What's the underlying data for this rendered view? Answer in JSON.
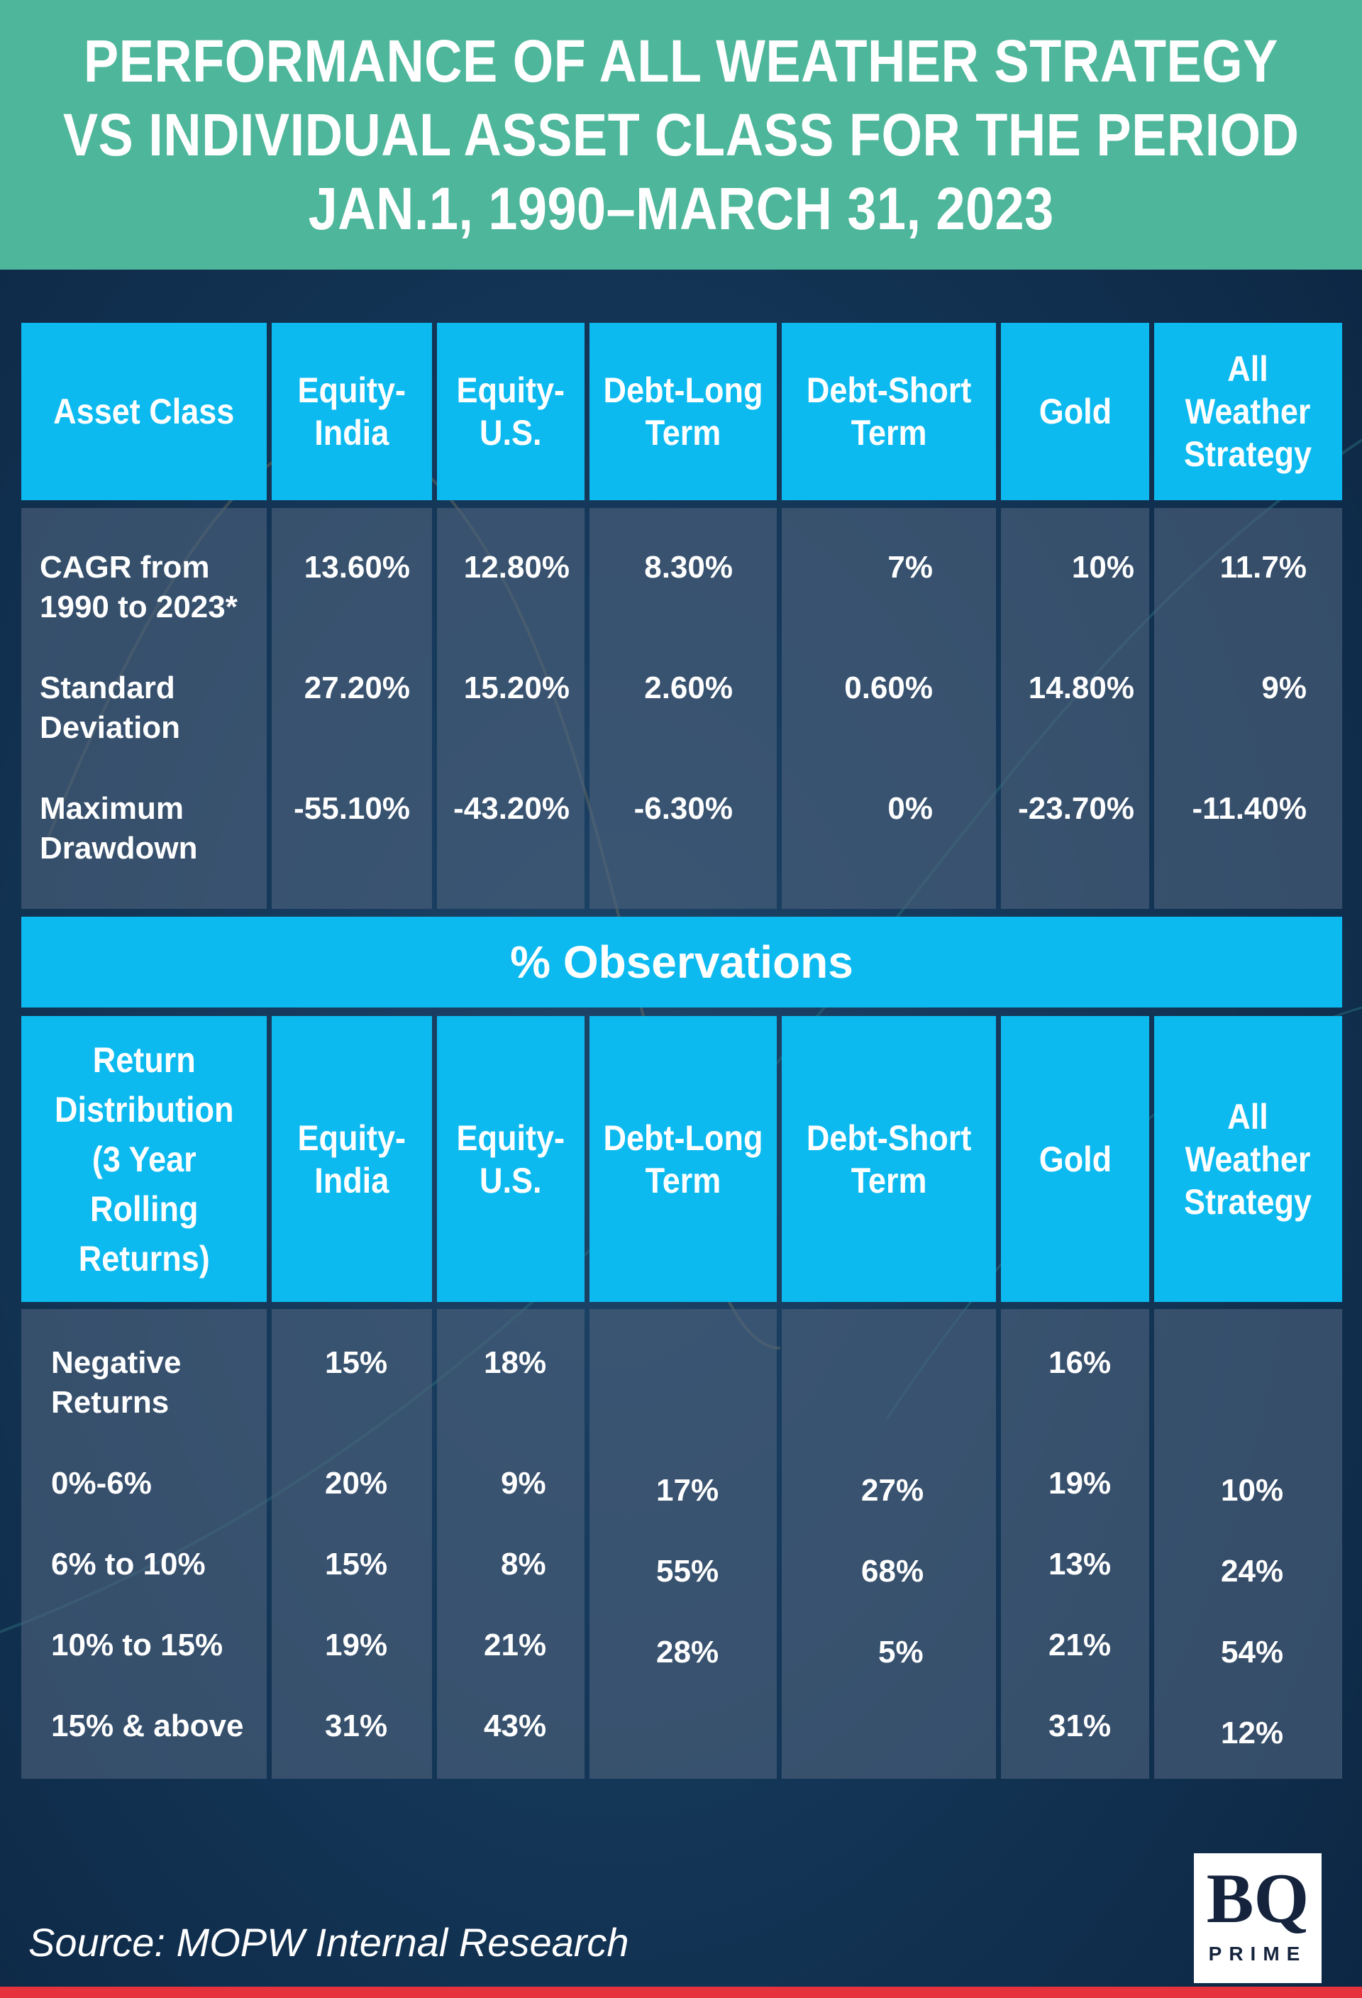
{
  "title_lines": [
    "PERFORMANCE OF ALL WEATHER STRATEGY",
    "VS INDIVIDUAL ASSET CLASS FOR THE PERIOD",
    "JAN.1, 1990–MARCH 31, 2023"
  ],
  "colors": {
    "header_band": "#4eb79b",
    "cell_header": "#0cbaf0",
    "background": "#0f2d4c",
    "footer_bar": "#e5323c"
  },
  "chart_data": [
    {
      "type": "table",
      "columns": [
        "Asset Class",
        "Equity-\nIndia",
        "Equity-\nU.S.",
        "Debt-Long\nTerm",
        "Debt-Short\nTerm",
        "Gold",
        "All\nWeather\nStrategy"
      ],
      "rows": [
        {
          "label": "CAGR from\n1990 to 2023*",
          "values": [
            "13.60%",
            "12.80%",
            "8.30%",
            "7%",
            "10%",
            "11.7%"
          ]
        },
        {
          "label": "Standard\nDeviation",
          "values": [
            "27.20%",
            "15.20%",
            "2.60%",
            "0.60%",
            "14.80%",
            "9%"
          ]
        },
        {
          "label": "Maximum\nDrawdown",
          "values": [
            "-55.10%",
            "-43.20%",
            "-6.30%",
            "0%",
            "-23.70%",
            "-11.40%"
          ]
        }
      ]
    },
    {
      "type": "table",
      "title": "% Observations",
      "columns": [
        "Return\nDistribution\n(3 Year\nRolling\nReturns)",
        "Equity-\nIndia",
        "Equity-\nU.S.",
        "Debt-Long\nTerm",
        "Debt-Short\nTerm",
        "Gold",
        "All\nWeather\nStrategy"
      ],
      "rows": [
        {
          "label": "Negative\nReturns",
          "values": [
            "15%",
            "18%",
            "",
            "",
            "16%",
            ""
          ]
        },
        {
          "label": "0%-6%",
          "values": [
            "20%",
            "9%",
            "17%",
            "27%",
            "19%",
            "10%"
          ]
        },
        {
          "label": "6% to 10%",
          "values": [
            "15%",
            "8%",
            "55%",
            "68%",
            "13%",
            "24%"
          ]
        },
        {
          "label": "10% to 15%",
          "values": [
            "19%",
            "21%",
            "28%",
            "5%",
            "21%",
            "54%"
          ]
        },
        {
          "label": "15% & above",
          "values": [
            "31%",
            "43%",
            "",
            "",
            "31%",
            "12%"
          ]
        }
      ]
    }
  ],
  "footer": {
    "source": "Source: MOPW Internal Research",
    "logo_text": "BQ",
    "logo_sub": "PRIME"
  }
}
